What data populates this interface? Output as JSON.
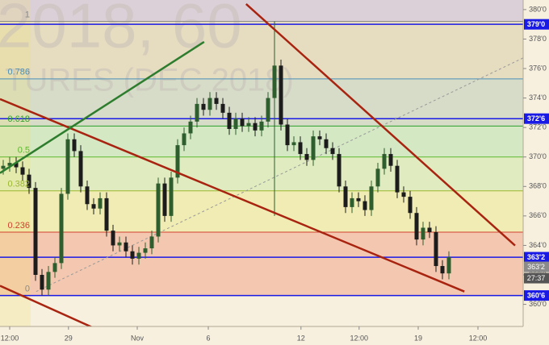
{
  "chart_data": {
    "type": "candlestick",
    "watermark": [
      "2018, 60",
      "TURES (DEC 2018)"
    ],
    "open": [
      369.2,
      369.4,
      369.6,
      369.3,
      368.8,
      367.9,
      362.0,
      361.0,
      362.2,
      362.8,
      367.5,
      371.2,
      370.4,
      368.0,
      366.8,
      366.5,
      367.2,
      365.0,
      364.0,
      364.2,
      363.6,
      363.1,
      363.5,
      363.8,
      364.6,
      368.2,
      366.0,
      368.6,
      370.8,
      371.6,
      372.4,
      373.6,
      373.2,
      374.0,
      373.6,
      373.0,
      371.9,
      372.6,
      372.1,
      372.3,
      371.8,
      372.4,
      374.0,
      376.2,
      372.2,
      370.8,
      371.0,
      370.2,
      369.8,
      371.4,
      371.2,
      370.6,
      370.2,
      368.0,
      366.6,
      367.2,
      367.0,
      366.4,
      368.0,
      369.2,
      370.2,
      369.4,
      367.6,
      367.3,
      366.2,
      364.4,
      365.2,
      364.9,
      362.6,
      362.1
    ],
    "high": [
      369.8,
      370.0,
      370.0,
      369.7,
      369.2,
      368.3,
      362.4,
      362.6,
      363.2,
      367.9,
      371.6,
      371.6,
      370.8,
      368.4,
      367.2,
      367.6,
      367.6,
      365.4,
      364.6,
      364.6,
      364.0,
      363.9,
      364.2,
      365.0,
      368.6,
      368.6,
      369.0,
      371.2,
      372.0,
      372.8,
      374.0,
      374.0,
      374.4,
      374.4,
      374.0,
      373.4,
      373.0,
      373.0,
      372.7,
      372.7,
      372.8,
      374.4,
      379.2,
      376.6,
      372.6,
      371.4,
      371.4,
      370.6,
      371.8,
      371.8,
      371.6,
      371.0,
      370.6,
      368.4,
      367.6,
      367.6,
      367.4,
      368.4,
      369.6,
      370.6,
      370.6,
      369.8,
      368.0,
      367.7,
      366.6,
      365.6,
      365.6,
      365.3,
      363.0,
      363.6
    ],
    "low": [
      368.8,
      369.0,
      368.9,
      368.4,
      367.5,
      361.6,
      360.6,
      360.6,
      361.8,
      362.4,
      367.1,
      370.0,
      367.6,
      366.4,
      366.1,
      366.1,
      364.6,
      363.6,
      363.6,
      363.2,
      362.7,
      362.7,
      363.1,
      363.4,
      364.2,
      365.6,
      365.6,
      368.2,
      370.4,
      371.2,
      372.0,
      372.8,
      372.8,
      373.2,
      372.6,
      371.5,
      371.5,
      371.7,
      371.7,
      371.4,
      371.4,
      372.0,
      366.0,
      371.8,
      370.4,
      370.4,
      369.8,
      369.4,
      369.4,
      370.8,
      370.2,
      369.8,
      367.6,
      366.2,
      366.2,
      366.6,
      366.0,
      366.0,
      367.6,
      368.8,
      369.0,
      367.2,
      366.9,
      365.8,
      364.0,
      364.0,
      364.5,
      362.2,
      361.7,
      361.7
    ],
    "close": [
      369.4,
      369.6,
      369.3,
      368.8,
      367.9,
      362.0,
      361.0,
      362.2,
      362.8,
      367.5,
      371.2,
      370.4,
      368.0,
      366.8,
      366.5,
      367.2,
      365.0,
      364.0,
      364.2,
      363.6,
      363.1,
      363.5,
      363.8,
      364.6,
      368.2,
      366.0,
      368.6,
      370.8,
      371.6,
      372.4,
      373.6,
      373.2,
      374.0,
      373.6,
      373.0,
      371.9,
      372.6,
      372.1,
      372.3,
      371.8,
      372.4,
      374.0,
      376.2,
      372.2,
      370.8,
      371.0,
      370.2,
      369.8,
      371.4,
      371.2,
      370.6,
      370.2,
      368.0,
      366.6,
      367.2,
      367.0,
      366.4,
      368.0,
      369.2,
      370.2,
      369.4,
      367.6,
      367.3,
      366.2,
      364.4,
      365.2,
      364.9,
      362.6,
      362.1,
      363.2
    ],
    "up_color": "#2e5e2e",
    "down_color": "#1c1c1c",
    "xlim": [
      -0.5,
      80.5
    ],
    "xticks": [
      {
        "value": 1,
        "label": "12:00"
      },
      {
        "value": 10.1,
        "label": "29"
      },
      {
        "value": 20.75,
        "label": "Nov"
      },
      {
        "value": 31.75,
        "label": "6"
      },
      {
        "value": 46.1,
        "label": "12"
      },
      {
        "value": 55.1,
        "label": "12:00"
      },
      {
        "value": 64.25,
        "label": "19"
      },
      {
        "value": 73.5,
        "label": "12:00"
      }
    ],
    "ylim": [
      358.5,
      380.65
    ],
    "yticks": [
      {
        "value": 360,
        "label": "360'0"
      },
      {
        "value": 362,
        "label": "362'0"
      },
      {
        "value": 364,
        "label": "364'0"
      },
      {
        "value": 366,
        "label": "366'0"
      },
      {
        "value": 368,
        "label": "368'0"
      },
      {
        "value": 370,
        "label": "370'0"
      },
      {
        "value": 372,
        "label": "372'0"
      },
      {
        "value": 374,
        "label": "374'0"
      },
      {
        "value": 376,
        "label": "376'0"
      },
      {
        "value": 378,
        "label": "378'0"
      },
      {
        "value": 380,
        "label": "380'0"
      }
    ],
    "fib": {
      "levels": [
        {
          "label": "1",
          "value": 379.2,
          "color": "#8a8a8a"
        },
        {
          "label": "0.786",
          "value": 375.3,
          "color": "#4a90b8"
        },
        {
          "label": "0.618",
          "value": 372.1,
          "color": "#2ea02e"
        },
        {
          "label": "0.5",
          "value": 370.0,
          "color": "#5cb82e"
        },
        {
          "label": "0.382",
          "value": 367.7,
          "color": "#9ab82e"
        },
        {
          "label": "0.236",
          "value": 364.9,
          "color": "#d0402e"
        },
        {
          "label": "0",
          "value": 360.6,
          "color": "#8a8a8a"
        }
      ],
      "band_colors": [
        "#dcd0d8",
        "#e6dcc0",
        "#d6dcc8",
        "#d4e8c4",
        "#e0ecc0",
        "#f0ecb4",
        "#f4c8b0"
      ]
    },
    "hlines": [
      {
        "value": 379.0,
        "label": "379'0",
        "color": "#1a1ae6"
      },
      {
        "value": 372.6,
        "label": "372'6",
        "color": "#1a1ae6"
      },
      {
        "value": 363.2,
        "label": "363'2",
        "color": "#1a1ae6"
      },
      {
        "value": 360.6,
        "label": "360'6",
        "color": "#1a1ae6"
      }
    ],
    "price_tag": {
      "value": 363.2,
      "label": "363'2",
      "timer": "27:37"
    },
    "dashed_line": {
      "color": "#999999",
      "points": [
        [
          5.1,
          360.87
        ],
        [
          80.5,
          376.72
        ]
      ]
    },
    "trendlines": [
      {
        "color": "#a82410",
        "points": [
          [
            37.6,
            380.38
          ],
          [
            79.25,
            363.99
          ]
        ]
      },
      {
        "color": "#a82410",
        "points": [
          [
            -0.5,
            373.93
          ],
          [
            71.4,
            360.87
          ]
        ]
      },
      {
        "color": "#a82410",
        "points": [
          [
            -0.5,
            361.26
          ],
          [
            13.9,
            358.42
          ]
        ]
      },
      {
        "color": "#2e7d2e",
        "points": [
          [
            -0.5,
            368.91
          ],
          [
            31.1,
            377.81
          ]
        ]
      }
    ]
  }
}
